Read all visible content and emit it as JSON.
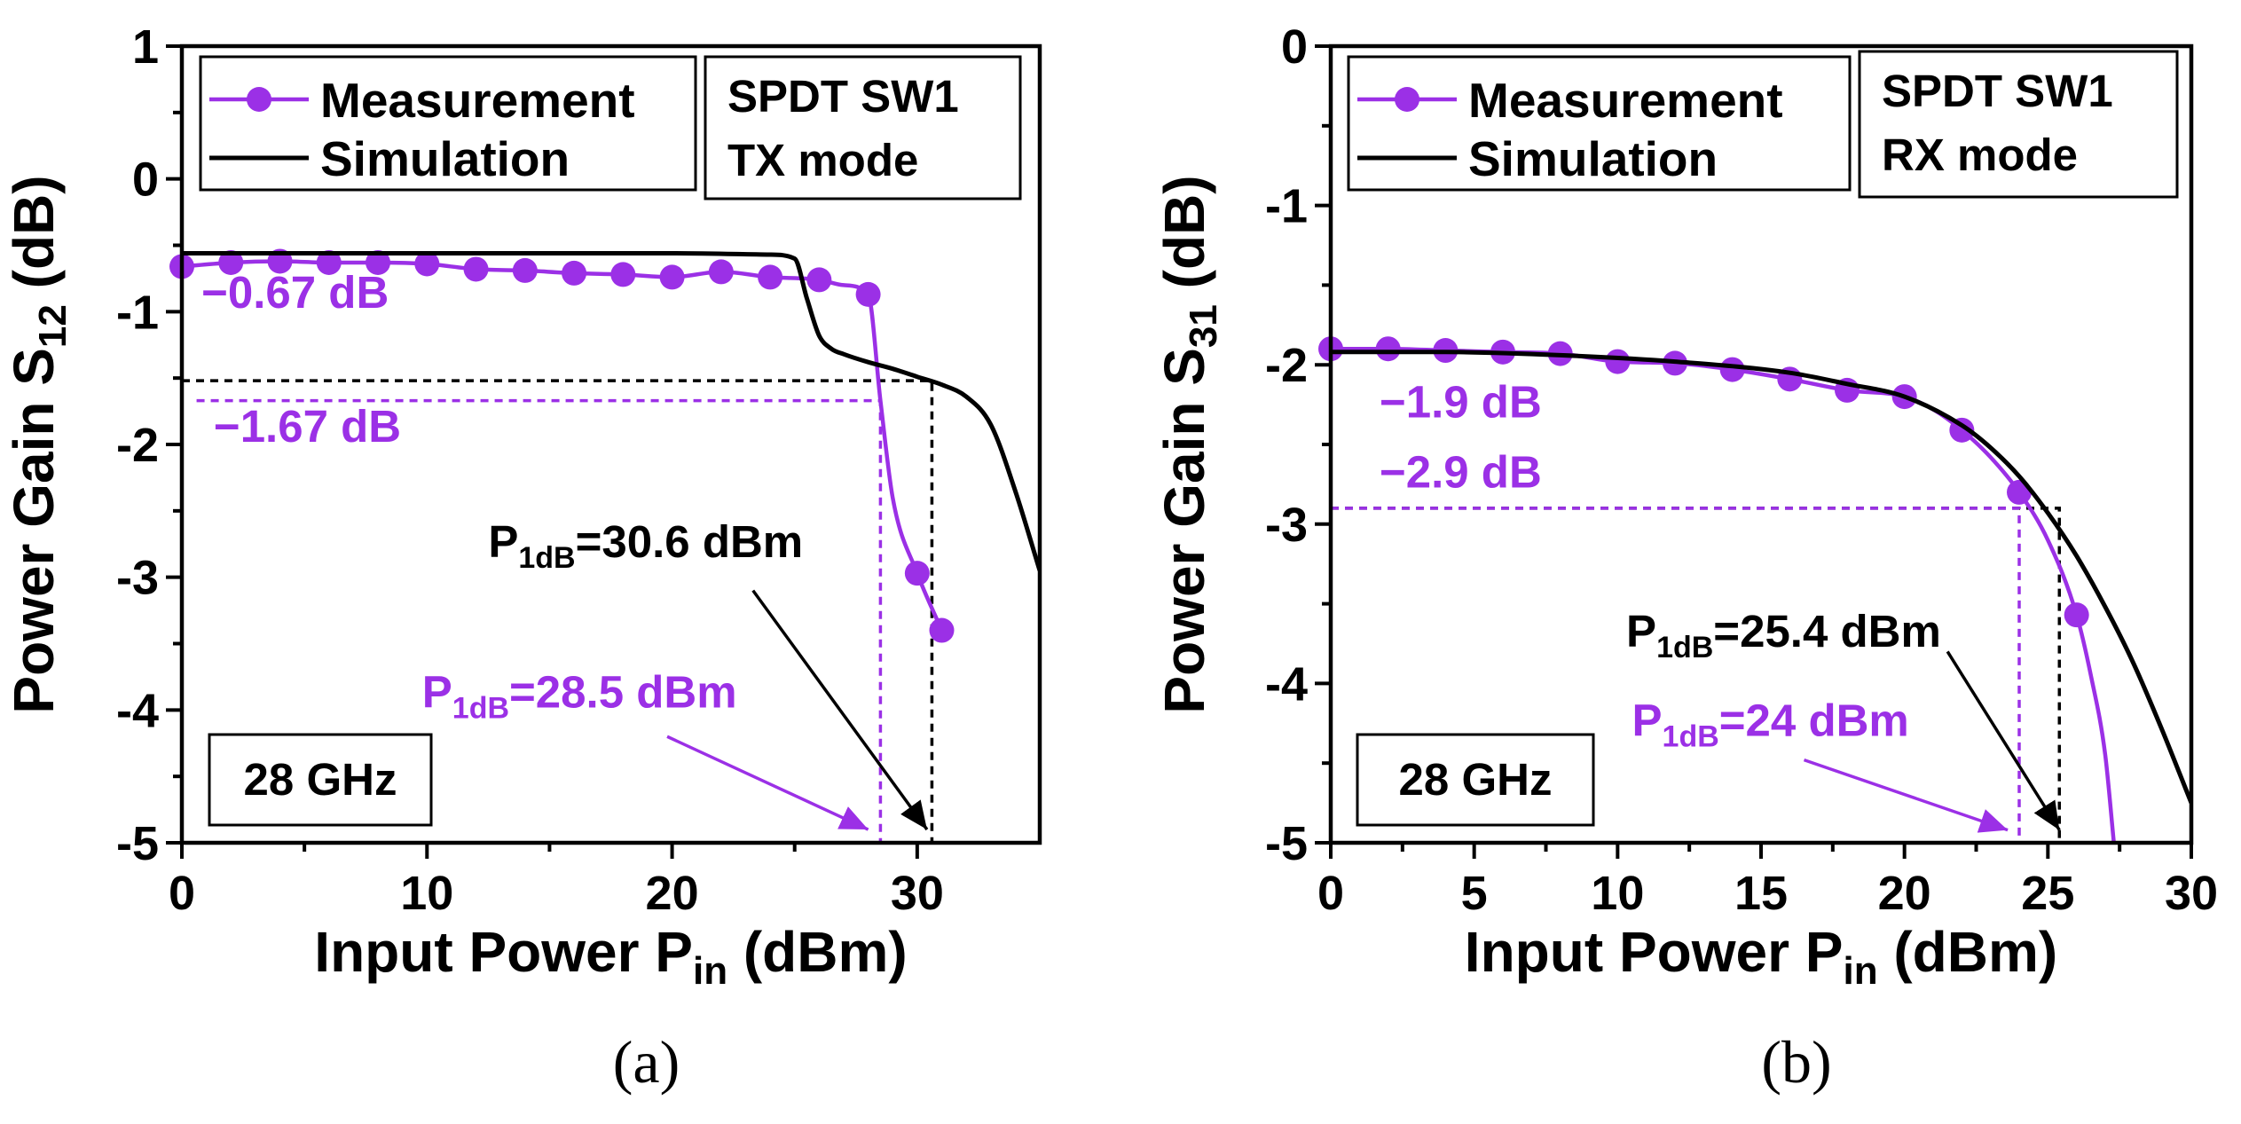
{
  "colors": {
    "measurement": "#9b30e6",
    "simulation": "#000000"
  },
  "chart_data": [
    {
      "type": "line",
      "panel": "(a)",
      "caption": "(a)",
      "title": "",
      "xlabel": "Input Power P",
      "xlabel_sub": "in",
      "xlabel_suffix": " (dBm)",
      "ylabel": "Power Gain S",
      "ylabel_sub": "12",
      "ylabel_suffix": " (dB)",
      "xlim": [
        0,
        35
      ],
      "ylim": [
        -5,
        1
      ],
      "xticks": [
        0,
        10,
        20,
        30
      ],
      "yticks": [
        1,
        0,
        -1,
        -2,
        -3,
        -4,
        -5
      ],
      "legend": {
        "location": "top-left",
        "entries": [
          "Measurement",
          "Simulation"
        ]
      },
      "mode_box": [
        "SPDT SW1",
        "TX mode"
      ],
      "freq_box": "28 GHz",
      "series": [
        {
          "name": "Measurement",
          "markers": true,
          "x": [
            0,
            2,
            4,
            6,
            8,
            10,
            12,
            14,
            16,
            18,
            20,
            22,
            24,
            26,
            28,
            30,
            31
          ],
          "y": [
            -0.66,
            -0.63,
            -0.62,
            -0.63,
            -0.63,
            -0.64,
            -0.68,
            -0.69,
            -0.71,
            -0.72,
            -0.74,
            -0.7,
            -0.74,
            -0.76,
            -0.87,
            -2.97,
            -3.4
          ],
          "curve_x": [
            0,
            2,
            4,
            6,
            8,
            10,
            12,
            14,
            16,
            18,
            20,
            22,
            24,
            26,
            27,
            28,
            28.5,
            29,
            30,
            31
          ],
          "curve_y": [
            -0.66,
            -0.63,
            -0.62,
            -0.63,
            -0.63,
            -0.64,
            -0.68,
            -0.69,
            -0.71,
            -0.72,
            -0.74,
            -0.7,
            -0.74,
            -0.76,
            -0.8,
            -0.87,
            -1.67,
            -2.4,
            -2.97,
            -3.4
          ]
        },
        {
          "name": "Simulation",
          "markers": false,
          "x": [
            0,
            5,
            10,
            15,
            20,
            24,
            25,
            25.5,
            26,
            26.5,
            27,
            28,
            29,
            30,
            31,
            32,
            33,
            34,
            35
          ],
          "y": [
            -0.56,
            -0.56,
            -0.56,
            -0.56,
            -0.56,
            -0.57,
            -0.6,
            -0.9,
            -1.18,
            -1.28,
            -1.32,
            -1.38,
            -1.43,
            -1.49,
            -1.55,
            -1.64,
            -1.85,
            -2.35,
            -2.95
          ]
        }
      ],
      "annotations": [
        {
          "label": "−0.67 dB",
          "color": "#9b30e6",
          "x": 0.8,
          "y": -0.97
        },
        {
          "label": "−1.67 dB",
          "color": "#9b30e6",
          "x": 1.3,
          "y": -1.98
        },
        {
          "label": "P",
          "sub": "1dB",
          "value": "=30.6 dBm",
          "color": "#000000",
          "x": 12.5,
          "y": -2.85
        },
        {
          "label": "P",
          "sub": "1dB",
          "value": "=28.5 dBm",
          "color": "#9b30e6",
          "x": 9.8,
          "y": -3.98
        }
      ],
      "guides": [
        {
          "color": "#000000",
          "from_x": 0,
          "x": 30.6,
          "y": -1.52
        },
        {
          "color": "#9b30e6",
          "from_x": 0.6,
          "x": 28.5,
          "y": -1.67
        }
      ],
      "arrows": [
        {
          "color": "#000000",
          "from": [
            23.3,
            -3.1
          ],
          "to": [
            30.4,
            -4.9
          ]
        },
        {
          "color": "#9b30e6",
          "from": [
            19.8,
            -4.2
          ],
          "to": [
            28.0,
            -4.9
          ]
        }
      ]
    },
    {
      "type": "line",
      "panel": "(b)",
      "caption": "(b)",
      "title": "",
      "xlabel": "Input Power P",
      "xlabel_sub": "in",
      "xlabel_suffix": " (dBm)",
      "ylabel": "Power Gain S",
      "ylabel_sub": "31",
      "ylabel_suffix": " (dB)",
      "xlim": [
        0,
        30
      ],
      "ylim": [
        -5,
        0
      ],
      "xticks": [
        0,
        5,
        10,
        15,
        20,
        25,
        30
      ],
      "yticks": [
        0,
        -1,
        -2,
        -3,
        -4,
        -5
      ],
      "legend": {
        "location": "top-left",
        "entries": [
          "Measurement",
          "Simulation"
        ]
      },
      "mode_box": [
        "SPDT SW1",
        "RX mode"
      ],
      "freq_box": "28 GHz",
      "series": [
        {
          "name": "Measurement",
          "markers": true,
          "x": [
            0,
            2,
            4,
            6,
            8,
            10,
            12,
            14,
            16,
            18,
            20,
            22,
            24,
            26
          ],
          "y": [
            -1.9,
            -1.9,
            -1.91,
            -1.92,
            -1.93,
            -1.98,
            -1.99,
            -2.03,
            -2.09,
            -2.16,
            -2.2,
            -2.41,
            -2.8,
            -3.57
          ],
          "curve_x": [
            0,
            2,
            4,
            6,
            8,
            10,
            12,
            14,
            16,
            18,
            20,
            21,
            22,
            23,
            24,
            25,
            26,
            26.5,
            27,
            27.3
          ],
          "curve_y": [
            -1.9,
            -1.9,
            -1.91,
            -1.92,
            -1.93,
            -1.98,
            -1.99,
            -2.03,
            -2.09,
            -2.16,
            -2.2,
            -2.28,
            -2.41,
            -2.58,
            -2.8,
            -3.1,
            -3.57,
            -3.95,
            -4.45,
            -5.0
          ]
        },
        {
          "name": "Simulation",
          "markers": false,
          "x": [
            0,
            4,
            8,
            12,
            16,
            18,
            20,
            22,
            23,
            24,
            25,
            26,
            27,
            28,
            29,
            30
          ],
          "y": [
            -1.92,
            -1.92,
            -1.94,
            -1.98,
            -2.05,
            -2.12,
            -2.2,
            -2.38,
            -2.52,
            -2.7,
            -2.93,
            -3.2,
            -3.52,
            -3.88,
            -4.3,
            -4.75
          ]
        }
      ],
      "annotations": [
        {
          "label": "−1.9 dB",
          "color": "#9b30e6",
          "x": 1.7,
          "y": -2.33
        },
        {
          "label": "−2.9 dB",
          "color": "#9b30e6",
          "x": 1.7,
          "y": -2.77
        },
        {
          "label": "P",
          "sub": "1dB",
          "value": "=25.4 dBm",
          "color": "#000000",
          "x": 10.3,
          "y": -3.77
        },
        {
          "label": "P",
          "sub": "1dB",
          "value": "=24 dBm",
          "color": "#9b30e6",
          "x": 10.5,
          "y": -4.33
        }
      ],
      "guides": [
        {
          "color": "#000000",
          "from_x": 0,
          "x": 25.4,
          "y": -2.9
        },
        {
          "color": "#9b30e6",
          "from_x": 0,
          "x": 24,
          "y": -2.9
        }
      ],
      "arrows": [
        {
          "color": "#000000",
          "from": [
            21.5,
            -3.8
          ],
          "to": [
            25.4,
            -4.92
          ]
        },
        {
          "color": "#9b30e6",
          "from": [
            16.5,
            -4.48
          ],
          "to": [
            23.6,
            -4.92
          ]
        }
      ]
    }
  ]
}
